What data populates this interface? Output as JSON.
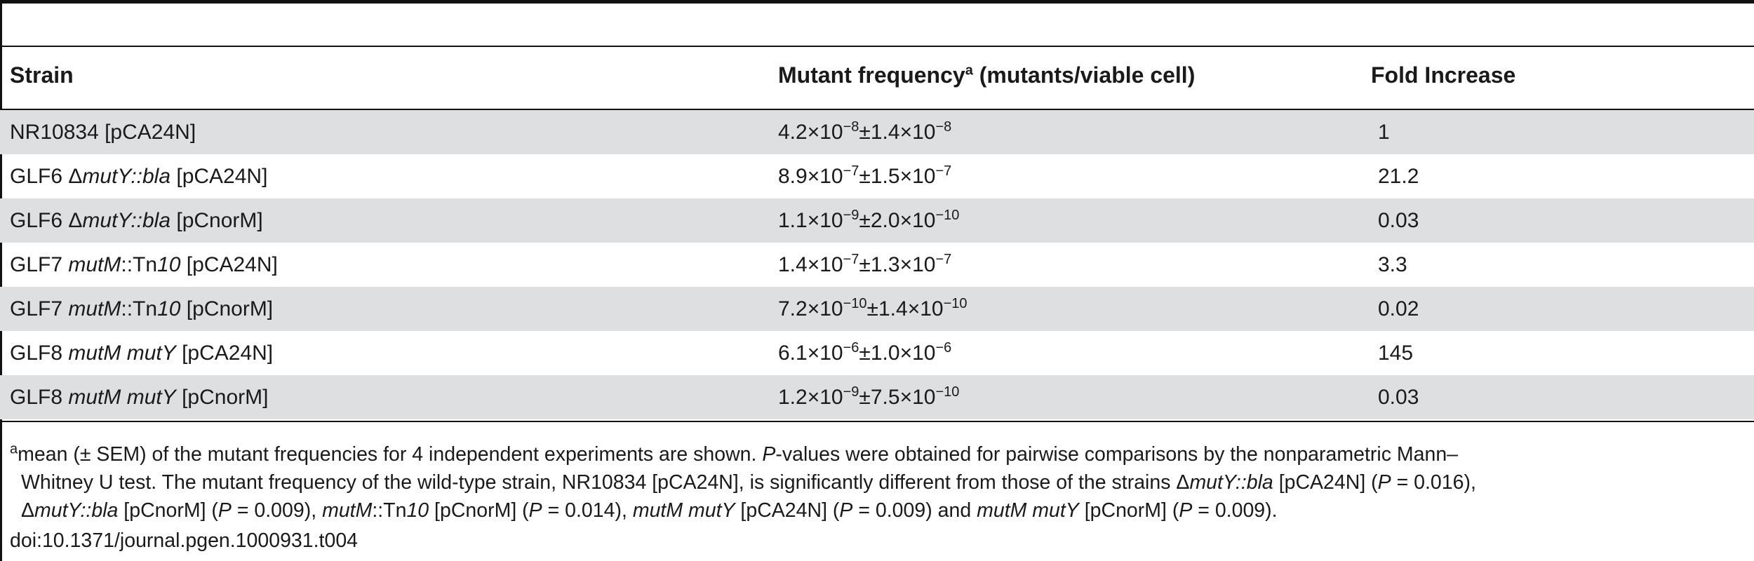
{
  "table": {
    "headers": {
      "strain": "Strain",
      "mutant_frequency": "Mutant frequency",
      "mutant_frequency_sup": "a",
      "mutant_frequency_unit": " (mutants/viable cell)",
      "fold_increase": "Fold Increase"
    },
    "rows": [
      {
        "strain_pre": "NR10834 [pCA24N]",
        "strain_it1": "",
        "strain_mid": "",
        "strain_it2": "",
        "strain_post": "",
        "m1": "4.2×10",
        "e1": "−8",
        "pm": "±",
        "m2": "1.4×10",
        "e2": "−8",
        "fold": "1"
      },
      {
        "strain_pre": "GLF6 Δ",
        "strain_it1": "mutY::bla",
        "strain_mid": "",
        "strain_it2": "",
        "strain_post": " [pCA24N]",
        "m1": "8.9×10",
        "e1": "−7",
        "pm": "±",
        "m2": "1.5×10",
        "e2": "−7",
        "fold": "21.2"
      },
      {
        "strain_pre": "GLF6 Δ",
        "strain_it1": "mutY::bla",
        "strain_mid": "",
        "strain_it2": "",
        "strain_post": " [pCnorM]",
        "m1": "1.1×10",
        "e1": "−9",
        "pm": "±",
        "m2": "2.0×10",
        "e2": "−10",
        "fold": "0.03"
      },
      {
        "strain_pre": "GLF7 ",
        "strain_it1": "mutM",
        "strain_mid": "::Tn",
        "strain_it2": "10",
        "strain_post": " [pCA24N]",
        "m1": "1.4×10",
        "e1": "−7",
        "pm": "±",
        "m2": "1.3×10",
        "e2": "−7",
        "fold": "3.3"
      },
      {
        "strain_pre": "GLF7 ",
        "strain_it1": "mutM",
        "strain_mid": "::Tn",
        "strain_it2": "10",
        "strain_post": " [pCnorM]",
        "m1": "7.2×10",
        "e1": "−10",
        "pm": "±",
        "m2": "1.4×10",
        "e2": "−10",
        "fold": "0.02"
      },
      {
        "strain_pre": "GLF8 ",
        "strain_it1": "mutM mutY",
        "strain_mid": "",
        "strain_it2": "",
        "strain_post": " [pCA24N]",
        "m1": "6.1×10",
        "e1": "−6",
        "pm": "±",
        "m2": "1.0×10",
        "e2": "−6",
        "fold": "145"
      },
      {
        "strain_pre": "GLF8 ",
        "strain_it1": "mutM mutY",
        "strain_mid": "",
        "strain_it2": "",
        "strain_post": " [pCnorM]",
        "m1": "1.2×10",
        "e1": "−9",
        "pm": "±",
        "m2": "7.5×10",
        "e2": "−10",
        "fold": "0.03"
      }
    ]
  },
  "footnote": {
    "sup": "a",
    "l1a": "mean (± SEM) of the mutant frequencies for 4 independent experiments are shown. ",
    "l1p": "P",
    "l1b": "-values were obtained for pairwise comparisons by the nonparametric Mann–",
    "l2a": "Whitney U test. The mutant frequency of the wild-type strain, NR10834 [pCA24N], is significantly different from those of the strains Δ",
    "l2i": "mutY::bla",
    "l2b": " [pCA24N] (",
    "l2p": "P",
    "l2c": " = 0.016),",
    "l3a": "Δ",
    "l3i1": "mutY::bla",
    "l3b": " [pCnorM] (",
    "l3p1": "P",
    "l3c": " = 0.009), ",
    "l3i2": "mutM",
    "l3d": "::Tn",
    "l3i3": "10",
    "l3e": " [pCnorM] (",
    "l3p2": "P",
    "l3f": " = 0.014), ",
    "l3i4": "mutM mutY",
    "l3g": " [pCA24N] (",
    "l3p3": "P",
    "l3h": " = 0.009) and ",
    "l3i5": "mutM mutY",
    "l3j": " [pCnorM] (",
    "l3p4": "P",
    "l3k": " = 0.009)."
  },
  "doi": "doi:10.1371/journal.pgen.1000931.t004"
}
